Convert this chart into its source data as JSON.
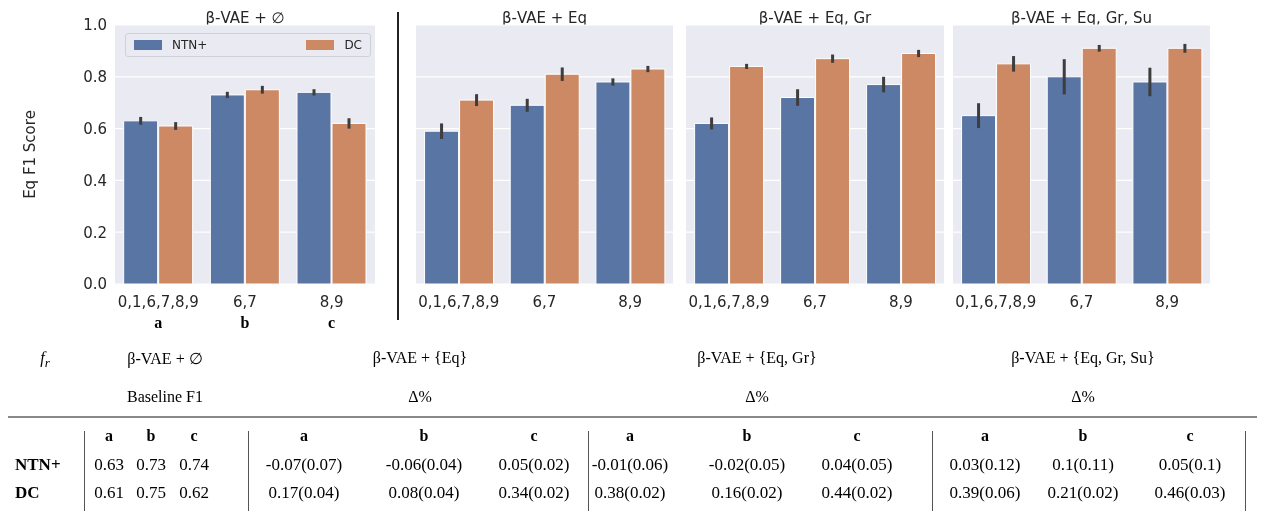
{
  "chart_data": [
    {
      "type": "bar",
      "title": "β-VAE + ∅",
      "ylabel": "Eq F1 Score",
      "categories": [
        "0,1,6,7,8,9",
        "6,7",
        "8,9"
      ],
      "series": [
        {
          "name": "NTN+",
          "color": "#5975a4",
          "values": [
            0.63,
            0.73,
            0.74
          ],
          "errors": [
            0.015,
            0.012,
            0.012
          ]
        },
        {
          "name": "DC",
          "color": "#cc8963",
          "values": [
            0.61,
            0.75,
            0.62
          ],
          "errors": [
            0.015,
            0.015,
            0.02
          ]
        }
      ],
      "annotations": [
        "a",
        "b",
        "c"
      ],
      "ylim": [
        0,
        1
      ],
      "yticks": [
        {
          "value": 0,
          "label": "0.0"
        },
        0.2,
        0.4,
        0.6,
        0.8,
        {
          "value": 1,
          "label": "1.0"
        }
      ],
      "grid": "y",
      "legend": "top"
    },
    {
      "type": "bar",
      "title": "β-VAE + Eq",
      "categories": [
        "0,1,6,7,8,9",
        "6,7",
        "8,9"
      ],
      "series": [
        {
          "color": "#5975a4",
          "values": [
            0.59,
            0.69,
            0.78
          ],
          "errors": [
            0.03,
            0.025,
            0.014
          ]
        },
        {
          "color": "#cc8963",
          "values": [
            0.71,
            0.81,
            0.83
          ],
          "errors": [
            0.023,
            0.026,
            0.012
          ]
        }
      ],
      "ylim": [
        0,
        1
      ],
      "yticks": [
        0,
        0.2,
        0.4,
        0.6,
        0.8,
        1
      ],
      "grid": "y",
      "tick_labels": "x"
    },
    {
      "type": "bar",
      "title": "β-VAE + Eq, Gr",
      "categories": [
        "0,1,6,7,8,9",
        "6,7",
        "8,9"
      ],
      "series": [
        {
          "color": "#5975a4",
          "values": [
            0.62,
            0.72,
            0.77
          ],
          "errors": [
            0.023,
            0.032,
            0.03
          ]
        },
        {
          "color": "#cc8963",
          "values": [
            0.84,
            0.87,
            0.89
          ],
          "errors": [
            0.01,
            0.016,
            0.014
          ]
        }
      ],
      "ylim": [
        0,
        1
      ],
      "yticks": [
        0,
        0.2,
        0.4,
        0.6,
        0.8,
        1
      ],
      "grid": "y",
      "tick_labels": "x"
    },
    {
      "type": "bar",
      "title": "β-VAE + Eq, Gr, Su",
      "categories": [
        "0,1,6,7,8,9",
        "6,7",
        "8,9"
      ],
      "series": [
        {
          "color": "#5975a4",
          "values": [
            0.65,
            0.8,
            0.78
          ],
          "errors": [
            0.048,
            0.068,
            0.055
          ]
        },
        {
          "color": "#cc8963",
          "values": [
            0.85,
            0.91,
            0.91
          ],
          "errors": [
            0.03,
            0.013,
            0.017
          ]
        }
      ],
      "ylim": [
        0,
        1
      ],
      "yticks": [
        0,
        0.2,
        0.4,
        0.6,
        0.8,
        1
      ],
      "grid": "y",
      "tick_labels": "x"
    },
    {
      "type": "other",
      "categories": [
        "a",
        "b",
        "c",
        "a",
        "b",
        "c",
        "a",
        "b",
        "c",
        "a",
        "b",
        "c"
      ],
      "y_categories": [
        "NTN+",
        "DC"
      ],
      "cell_labels": [
        [
          "0.63",
          "0.73",
          "0.74",
          "-0.07(0.07)",
          "-0.06(0.04)",
          "0.05(0.02)",
          "-0.01(0.06)",
          "-0.02(0.05)",
          "0.04(0.05)",
          "0.03(0.12)",
          "0.1(0.11)",
          "0.05(0.1)"
        ],
        [
          "0.61",
          "0.75",
          "0.62",
          "0.17(0.04)",
          "0.08(0.04)",
          "0.34(0.02)",
          "0.38(0.02)",
          "0.16(0.02)",
          "0.44(0.02)",
          "0.39(0.06)",
          "0.21(0.02)",
          "0.46(0.03)"
        ]
      ],
      "annotations": [
        "f$_{r}$",
        "β-VAE + ∅",
        "β-VAE + {Eq}",
        "β-VAE + {Eq, Gr}",
        "β-VAE + {Eq, Gr, Su}",
        "Baseline F1",
        "Δ%",
        "Δ%",
        "Δ%"
      ]
    }
  ]
}
